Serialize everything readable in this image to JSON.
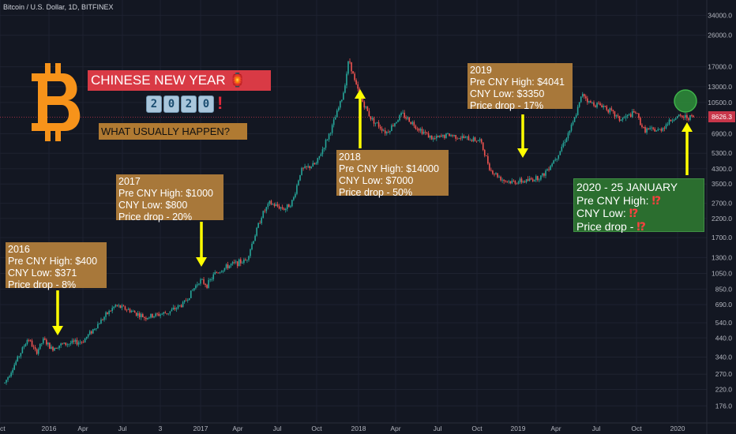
{
  "header": {
    "title": "Bitcoin / U.S. Dollar, 1D, BITFINEX"
  },
  "colors": {
    "background": "#131722",
    "up": "#26a69a",
    "down": "#ef5350",
    "grid": "#1e2230",
    "arrow": "#ffff00",
    "brown_box": "#a8783a",
    "green_box": "#2b6e2f",
    "last_price": "#c8364a"
  },
  "banner": {
    "title": "CHINESE NEW YEAR 🏮",
    "year_digits": [
      "2",
      "0",
      "2",
      "0"
    ],
    "exclamation": "!",
    "subtitle": "WHAT USUALLY HAPPEN?"
  },
  "last_price_label": "8626.3",
  "annotations": [
    {
      "lines": [
        "2016",
        "Pre CNY High: $400",
        "CNY Low: $371",
        "Price drop - 8%"
      ]
    },
    {
      "lines": [
        "2017",
        "Pre CNY High: $1000",
        "CNY Low: $800",
        "Price drop - 20%"
      ]
    },
    {
      "lines": [
        "2018",
        "Pre CNY High: $14000",
        "CNY Low: $7000",
        "Price drop - 50%"
      ]
    },
    {
      "lines": [
        "2019",
        "Pre CNY High: $4041",
        "CNY Low: $3350",
        "Price drop - 17%"
      ]
    },
    {
      "lines": [
        "2020 - 25 JANUARY",
        "Pre CNY High: ",
        "CNY Low: ",
        "Price drop - "
      ],
      "marks": [
        "",
        "⁉",
        "⁉",
        "⁉"
      ]
    }
  ],
  "chart_data": {
    "type": "line",
    "title": "Bitcoin / U.S. Dollar, 1D, BITFINEX",
    "yscale": "log",
    "ylim": [
      160,
      34000
    ],
    "y_ticks": [
      "34000.0",
      "26000.0",
      "17000.0",
      "13000.0",
      "10500.0",
      "8626.3",
      "6900.0",
      "5300.0",
      "4300.0",
      "3500.0",
      "2700.0",
      "2200.0",
      "1700.0",
      "1300.0",
      "1050.0",
      "850.0",
      "690.0",
      "540.0",
      "440.0",
      "340.0",
      "270.0",
      "220.0",
      "176.0"
    ],
    "x_ticks": [
      "Oct",
      "2016",
      "Apr",
      "Jul",
      "3",
      "2017",
      "Apr",
      "Jul",
      "Oct",
      "2018",
      "Apr",
      "Jul",
      "Oct",
      "2019",
      "Apr",
      "Jul",
      "Oct",
      "2020"
    ],
    "series": [
      {
        "x": [
          2015.75,
          2015.83,
          2015.9,
          2015.95,
          2016.0,
          2016.05,
          2016.1,
          2016.25,
          2016.4,
          2016.46,
          2016.55,
          2016.65,
          2016.8,
          2016.9,
          2017.0,
          2017.05,
          2017.1,
          2017.2,
          2017.3,
          2017.4,
          2017.45,
          2017.55,
          2017.6,
          2017.65,
          2017.75,
          2017.85,
          2017.92,
          2017.96,
          2018.0,
          2018.05,
          2018.1,
          2018.2,
          2018.3,
          2018.4,
          2018.5,
          2018.6,
          2018.7,
          2018.8,
          2018.87,
          2018.95,
          2019.0,
          2019.1,
          2019.2,
          2019.3,
          2019.4,
          2019.46,
          2019.5,
          2019.6,
          2019.7,
          2019.8,
          2019.85,
          2019.95,
          2020.05
        ],
        "y": [
          240,
          330,
          440,
          360,
          430,
          380,
          400,
          420,
          600,
          680,
          640,
          580,
          620,
          700,
          960,
          900,
          1050,
          1180,
          1250,
          2300,
          2700,
          2500,
          2800,
          4200,
          4600,
          7500,
          11500,
          19000,
          13500,
          10500,
          8500,
          7000,
          9000,
          7500,
          6400,
          6800,
          6500,
          6300,
          4200,
          3700,
          3600,
          3650,
          3900,
          5200,
          8000,
          12000,
          10500,
          10000,
          8300,
          9200,
          7300,
          7200,
          8626.3
        ]
      }
    ]
  }
}
